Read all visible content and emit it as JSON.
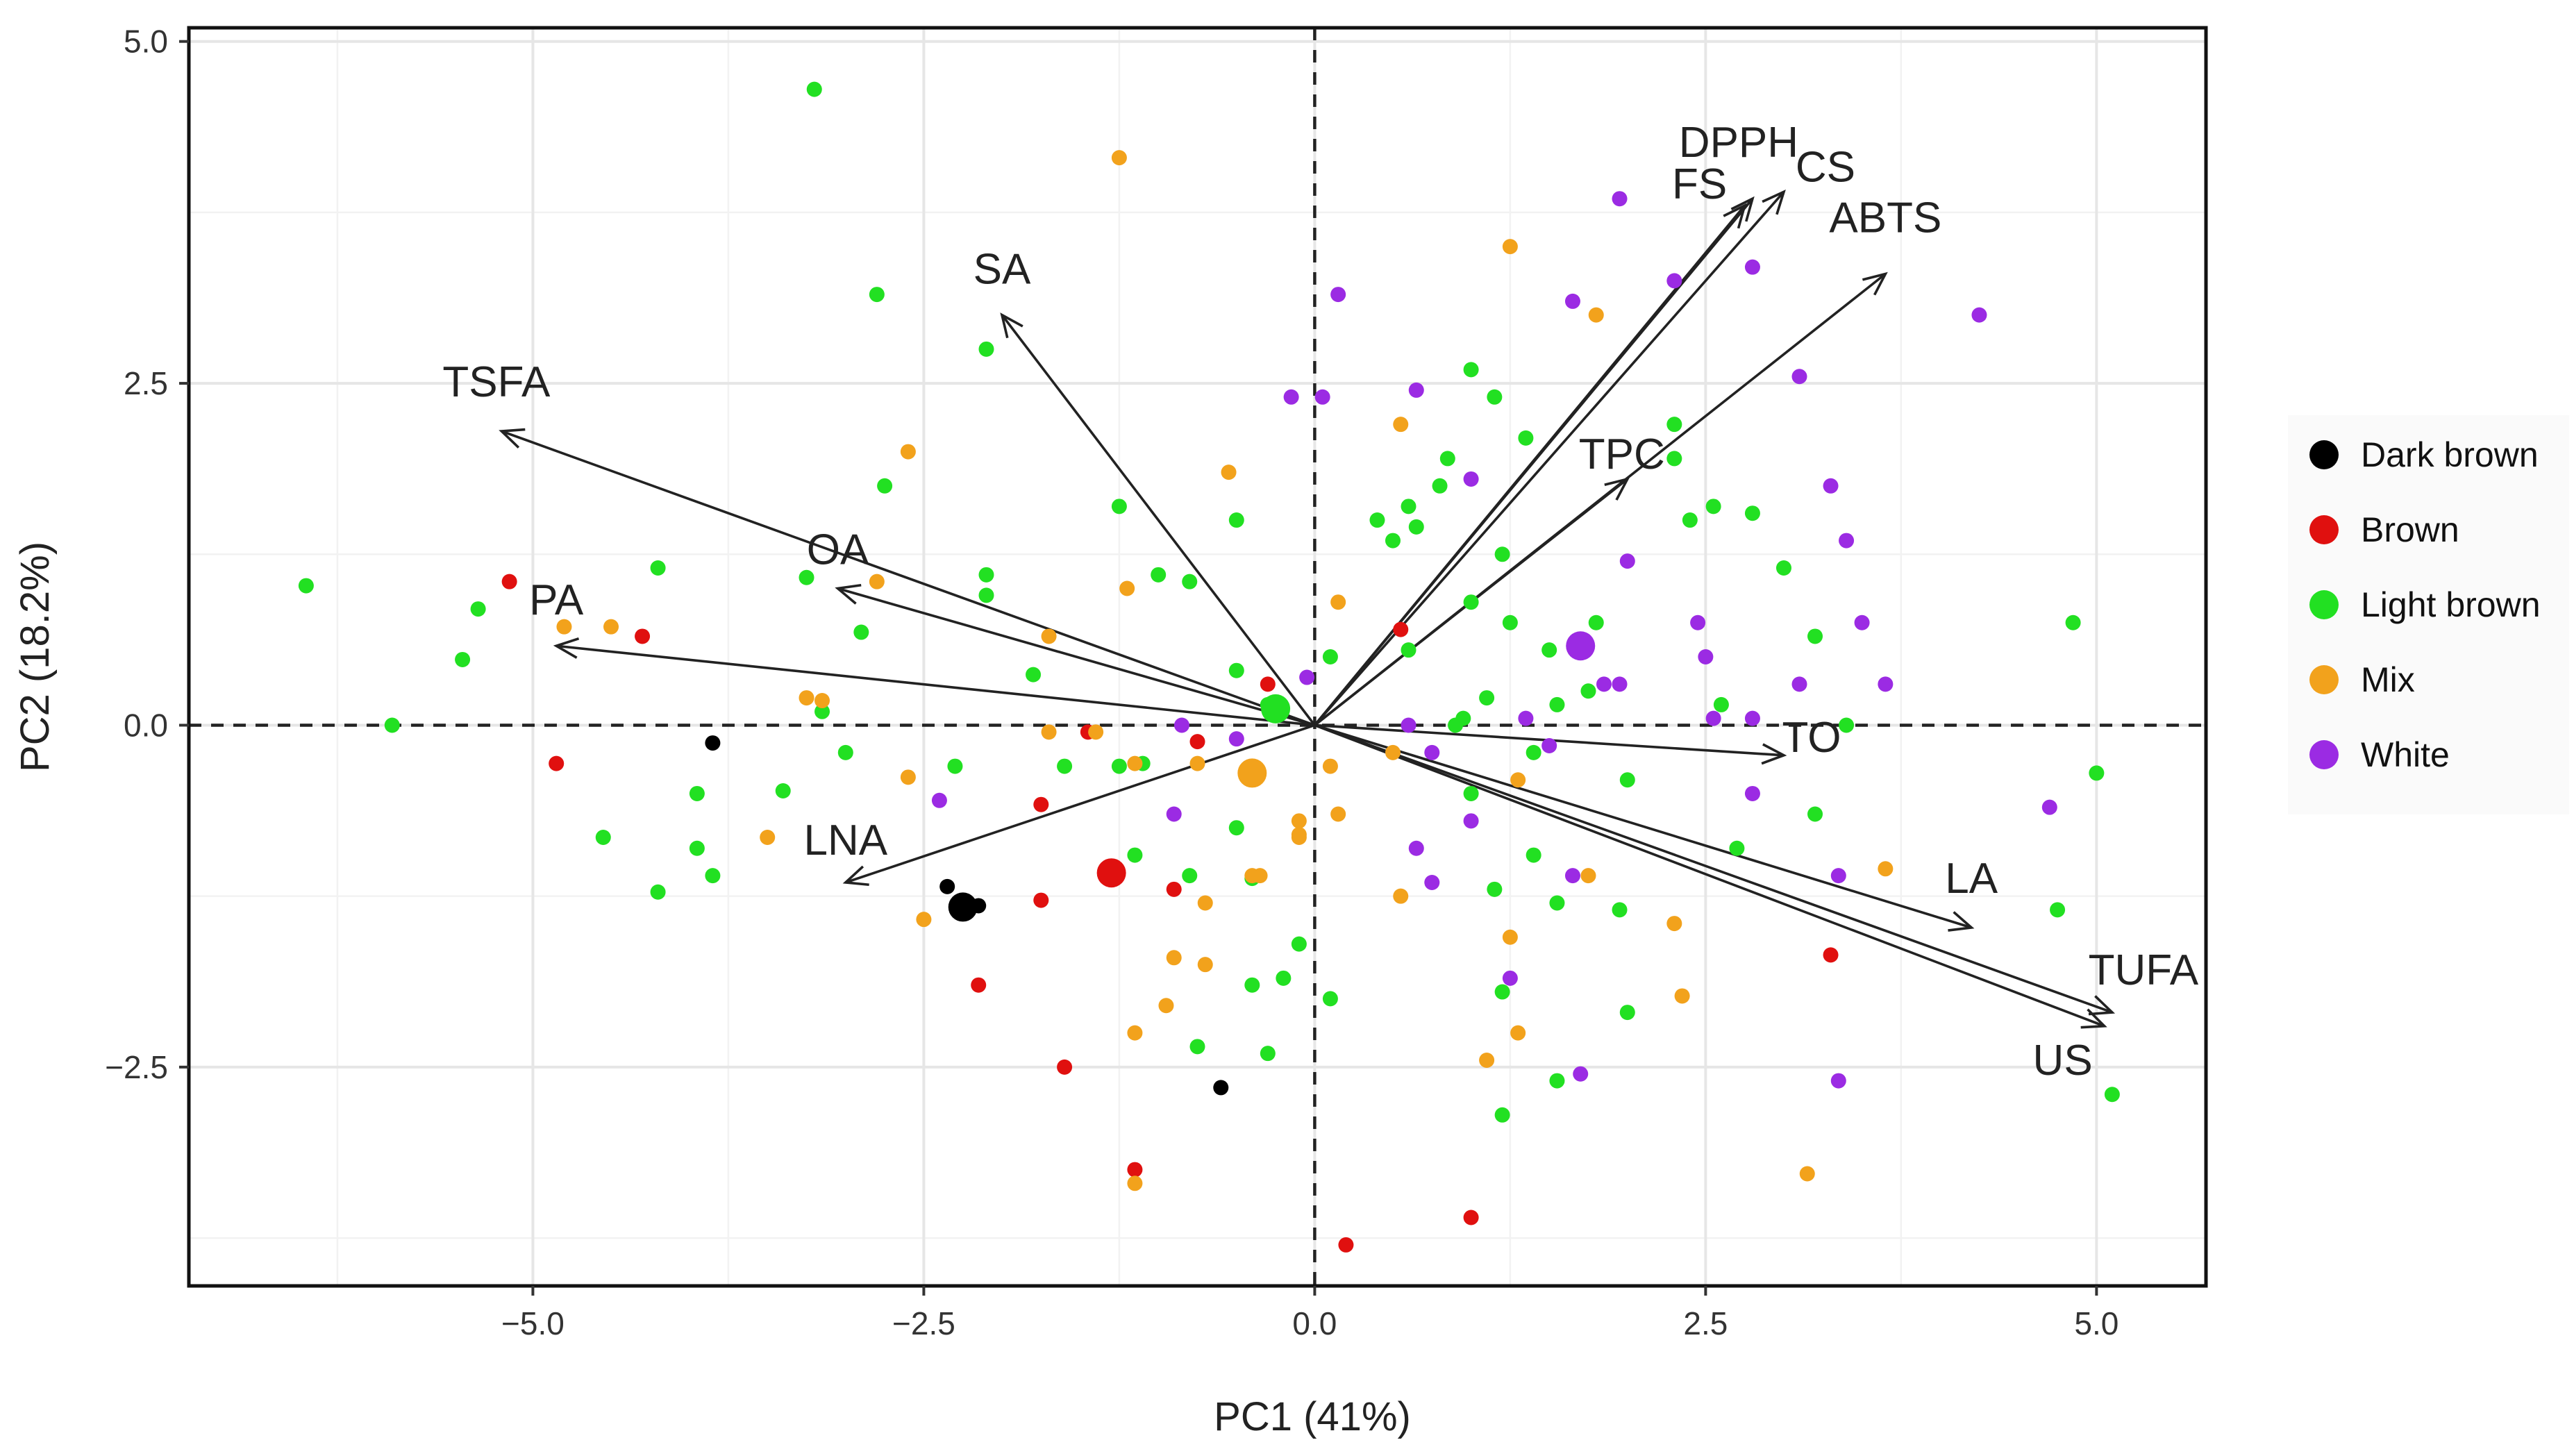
{
  "chart_data": {
    "type": "scatter",
    "subtype": "pca-biplot",
    "xlabel": "PC1 (41%)",
    "ylabel": "PC2 (18.2%)",
    "xlim": [
      -7.2,
      5.7
    ],
    "ylim": [
      -4.1,
      5.1
    ],
    "x_ticks": [
      -5.0,
      -2.5,
      0.0,
      2.5,
      5.0
    ],
    "x_tick_labels": [
      "−5.0",
      "−2.5",
      "0.0",
      "2.5",
      "5.0"
    ],
    "y_ticks": [
      -2.5,
      0.0,
      2.5,
      5.0
    ],
    "y_tick_labels": [
      "−2.5",
      "0.0",
      "2.5",
      "5.0"
    ],
    "grid": true,
    "zero_lines": "dashed",
    "legend_position": "right",
    "colors": {
      "Dark brown": "#000000",
      "Brown": "#e0100f",
      "Light brown": "#22e022",
      "Mix": "#f2a21c",
      "White": "#9b2be3"
    },
    "legend": [
      "Dark brown",
      "Brown",
      "Light brown",
      "Mix",
      "White"
    ],
    "loadings": [
      {
        "label": "DPPH",
        "x": 2.8,
        "y": 3.85
      },
      {
        "label": "FS",
        "x": 2.75,
        "y": 3.8
      },
      {
        "label": "CS",
        "x": 3.0,
        "y": 3.9
      },
      {
        "label": "ABTS",
        "x": 3.65,
        "y": 3.3
      },
      {
        "label": "SA",
        "x": -2.0,
        "y": 3.0
      },
      {
        "label": "TSFA",
        "x": -5.2,
        "y": 2.15
      },
      {
        "label": "TPC",
        "x": 2.0,
        "y": 1.8
      },
      {
        "label": "OA",
        "x": -3.05,
        "y": 1.0
      },
      {
        "label": "PA",
        "x": -4.85,
        "y": 0.58
      },
      {
        "label": "TO",
        "x": 3.0,
        "y": -0.22
      },
      {
        "label": "LNA",
        "x": -3.0,
        "y": -1.15
      },
      {
        "label": "LA",
        "x": 4.2,
        "y": -1.48
      },
      {
        "label": "TUFA",
        "x": 5.1,
        "y": -2.1
      },
      {
        "label": "US",
        "x": 5.05,
        "y": -2.2
      }
    ],
    "series": [
      {
        "name": "Dark brown",
        "points": [
          [
            -3.85,
            -0.13
          ],
          [
            -2.35,
            -1.18
          ],
          [
            -2.25,
            -1.32
          ],
          [
            -2.15,
            -1.32
          ],
          [
            -0.6,
            -2.65
          ]
        ],
        "centroid": [
          -2.25,
          -1.33
        ]
      },
      {
        "name": "Brown",
        "points": [
          [
            -5.15,
            1.05
          ],
          [
            -4.3,
            0.65
          ],
          [
            -4.85,
            -0.28
          ],
          [
            -1.45,
            -0.05
          ],
          [
            -0.75,
            -0.12
          ],
          [
            -0.3,
            0.3
          ],
          [
            0.55,
            0.7
          ],
          [
            -1.75,
            -0.58
          ],
          [
            -2.15,
            -1.9
          ],
          [
            -1.75,
            -1.28
          ],
          [
            -0.9,
            -1.2
          ],
          [
            -1.6,
            -2.5
          ],
          [
            -1.15,
            -3.25
          ],
          [
            0.2,
            -3.8
          ],
          [
            1.0,
            -3.6
          ],
          [
            3.3,
            -1.68
          ]
        ],
        "centroid": [
          -1.3,
          -1.08
        ]
      },
      {
        "name": "Light brown",
        "points": [
          [
            -6.45,
            1.02
          ],
          [
            -5.9,
            0.0
          ],
          [
            -5.35,
            0.85
          ],
          [
            -5.45,
            0.48
          ],
          [
            -4.2,
            1.15
          ],
          [
            -4.2,
            -1.22
          ],
          [
            -3.95,
            -0.5
          ],
          [
            -3.95,
            -0.9
          ],
          [
            -3.85,
            -1.1
          ],
          [
            -3.25,
            1.08
          ],
          [
            -3.15,
            0.1
          ],
          [
            -2.9,
            0.68
          ],
          [
            -2.75,
            1.75
          ],
          [
            -2.8,
            3.15
          ],
          [
            -2.1,
            2.75
          ],
          [
            -2.1,
            0.95
          ],
          [
            -2.1,
            1.1
          ],
          [
            -1.8,
            0.37
          ],
          [
            -1.6,
            -0.3
          ],
          [
            -1.25,
            1.6
          ],
          [
            -1.0,
            1.1
          ],
          [
            -0.8,
            1.05
          ],
          [
            -0.5,
            0.4
          ],
          [
            -0.5,
            -0.75
          ],
          [
            -0.3,
            0.15
          ],
          [
            -0.25,
            0.1
          ],
          [
            -1.15,
            -0.95
          ],
          [
            -0.8,
            -1.1
          ],
          [
            -0.4,
            -1.12
          ],
          [
            -0.1,
            -1.6
          ],
          [
            -0.2,
            -1.85
          ],
          [
            -0.4,
            -1.9
          ],
          [
            -0.75,
            -2.35
          ],
          [
            -0.3,
            -2.4
          ],
          [
            -3.2,
            4.65
          ],
          [
            -4.55,
            -0.82
          ],
          [
            -3.4,
            -0.48
          ],
          [
            -3.0,
            -0.2
          ],
          [
            -2.3,
            -0.3
          ],
          [
            -1.25,
            -0.3
          ],
          [
            -1.1,
            -0.28
          ],
          [
            0.4,
            1.5
          ],
          [
            0.5,
            1.35
          ],
          [
            0.6,
            1.6
          ],
          [
            0.65,
            1.45
          ],
          [
            0.8,
            1.75
          ],
          [
            0.85,
            1.95
          ],
          [
            1.0,
            2.6
          ],
          [
            1.15,
            2.4
          ],
          [
            1.35,
            2.1
          ],
          [
            1.2,
            1.25
          ],
          [
            0.6,
            0.55
          ],
          [
            1.0,
            0.9
          ],
          [
            1.25,
            0.75
          ],
          [
            1.1,
            0.2
          ],
          [
            1.4,
            -0.2
          ],
          [
            0.9,
            0.0
          ],
          [
            0.95,
            0.05
          ],
          [
            1.0,
            -0.5
          ],
          [
            1.5,
            0.55
          ],
          [
            1.55,
            0.15
          ],
          [
            1.8,
            0.75
          ],
          [
            1.75,
            0.25
          ],
          [
            1.4,
            -0.95
          ],
          [
            1.55,
            -1.3
          ],
          [
            1.15,
            -1.2
          ],
          [
            1.2,
            -1.95
          ],
          [
            1.55,
            -2.6
          ],
          [
            1.2,
            -2.85
          ],
          [
            1.95,
            -1.35
          ],
          [
            2.0,
            -2.1
          ],
          [
            2.4,
            1.5
          ],
          [
            2.55,
            1.6
          ],
          [
            2.3,
            2.2
          ],
          [
            2.3,
            1.95
          ],
          [
            2.6,
            0.15
          ],
          [
            2.8,
            1.55
          ],
          [
            3.0,
            1.15
          ],
          [
            3.2,
            0.65
          ],
          [
            3.4,
            0.0
          ],
          [
            3.2,
            -0.65
          ],
          [
            4.85,
            0.75
          ],
          [
            5.0,
            -0.35
          ],
          [
            4.75,
            -1.35
          ],
          [
            5.1,
            -2.7
          ],
          [
            2.7,
            -0.9
          ],
          [
            2.0,
            -0.4
          ],
          [
            0.1,
            -2.0
          ],
          [
            -0.5,
            1.5
          ],
          [
            0.1,
            0.5
          ]
        ],
        "centroid": [
          -0.25,
          0.12
        ]
      },
      {
        "name": "Mix",
        "points": [
          [
            -4.8,
            0.72
          ],
          [
            -4.5,
            0.72
          ],
          [
            -3.25,
            0.2
          ],
          [
            -3.15,
            0.18
          ],
          [
            -3.5,
            -0.82
          ],
          [
            -2.6,
            2.0
          ],
          [
            -2.8,
            1.05
          ],
          [
            -2.6,
            -0.38
          ],
          [
            -2.5,
            -1.42
          ],
          [
            -1.7,
            0.65
          ],
          [
            -1.7,
            -0.05
          ],
          [
            -1.4,
            -0.05
          ],
          [
            -1.2,
            1.0
          ],
          [
            -1.25,
            4.15
          ],
          [
            -0.55,
            1.85
          ],
          [
            -1.15,
            -0.28
          ],
          [
            -0.75,
            -0.28
          ],
          [
            -0.7,
            -1.3
          ],
          [
            -0.4,
            -1.1
          ],
          [
            -0.35,
            -1.1
          ],
          [
            -0.1,
            -0.8
          ],
          [
            -0.1,
            -0.82
          ],
          [
            -0.7,
            -1.75
          ],
          [
            -0.95,
            -2.05
          ],
          [
            -1.15,
            -2.25
          ],
          [
            -0.9,
            -1.7
          ],
          [
            -0.1,
            -0.7
          ],
          [
            0.15,
            -0.65
          ],
          [
            0.15,
            0.9
          ],
          [
            0.1,
            -0.3
          ],
          [
            0.5,
            -0.2
          ],
          [
            0.55,
            2.2
          ],
          [
            0.55,
            -1.25
          ],
          [
            1.1,
            -2.45
          ],
          [
            1.3,
            -2.25
          ],
          [
            1.25,
            -1.55
          ],
          [
            1.3,
            -0.4
          ],
          [
            1.75,
            -1.1
          ],
          [
            1.25,
            3.5
          ],
          [
            1.8,
            3.0
          ],
          [
            2.3,
            -1.45
          ],
          [
            2.35,
            -1.98
          ],
          [
            3.15,
            -3.28
          ],
          [
            3.65,
            -1.05
          ],
          [
            -1.15,
            -3.35
          ]
        ],
        "centroid": [
          -0.4,
          -0.35
        ]
      },
      {
        "name": "White",
        "points": [
          [
            -2.4,
            -0.55
          ],
          [
            -0.9,
            -0.65
          ],
          [
            -0.85,
            0.0
          ],
          [
            -0.5,
            -0.1
          ],
          [
            -0.05,
            0.35
          ],
          [
            -0.15,
            2.4
          ],
          [
            0.05,
            2.4
          ],
          [
            0.15,
            3.15
          ],
          [
            0.65,
            2.45
          ],
          [
            0.6,
            0.0
          ],
          [
            0.75,
            -0.2
          ],
          [
            0.75,
            -1.15
          ],
          [
            0.65,
            -0.9
          ],
          [
            1.0,
            1.8
          ],
          [
            1.0,
            -0.7
          ],
          [
            1.25,
            -1.85
          ],
          [
            1.35,
            0.05
          ],
          [
            1.5,
            -0.15
          ],
          [
            1.65,
            -1.1
          ],
          [
            1.65,
            3.1
          ],
          [
            1.85,
            0.3
          ],
          [
            1.95,
            0.3
          ],
          [
            2.0,
            1.2
          ],
          [
            1.95,
            3.85
          ],
          [
            2.3,
            3.25
          ],
          [
            1.7,
            -2.55
          ],
          [
            2.5,
            0.5
          ],
          [
            2.45,
            0.75
          ],
          [
            2.8,
            3.35
          ],
          [
            2.8,
            -0.5
          ],
          [
            2.8,
            0.05
          ],
          [
            3.1,
            0.3
          ],
          [
            3.1,
            2.55
          ],
          [
            3.3,
            1.75
          ],
          [
            3.4,
            1.35
          ],
          [
            3.5,
            0.75
          ],
          [
            3.65,
            0.3
          ],
          [
            3.35,
            -2.6
          ],
          [
            3.35,
            -1.1
          ],
          [
            4.25,
            3.0
          ],
          [
            4.7,
            -0.6
          ],
          [
            2.55,
            0.05
          ]
        ],
        "centroid": [
          1.7,
          0.58
        ]
      }
    ]
  }
}
